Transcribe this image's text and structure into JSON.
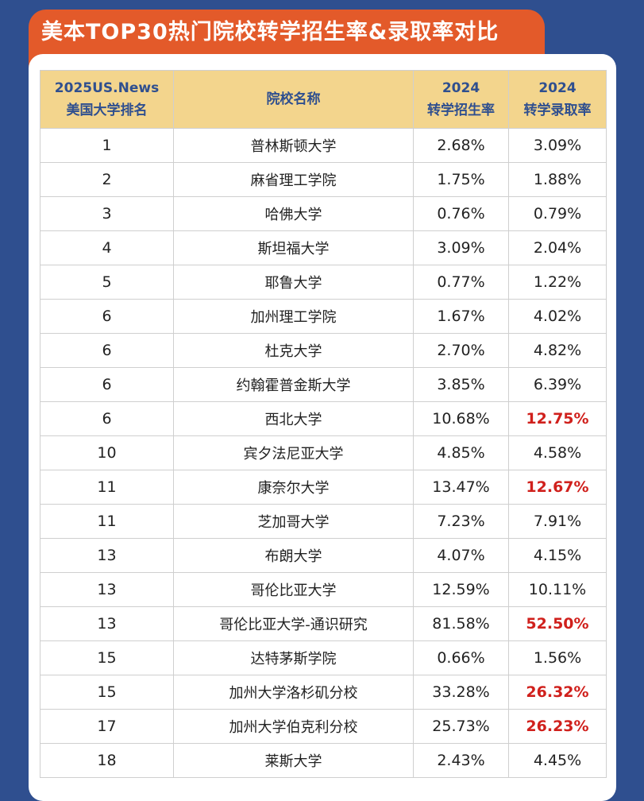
{
  "title": "美本TOP30热门院校转学招生率&录取率对比",
  "colors": {
    "background": "#2f4f8f",
    "title_bg": "#e35a2a",
    "header_bg": "#f3d58d",
    "highlight": "#d0201c"
  },
  "table": {
    "headers": {
      "rank_line1": "2025US.News",
      "rank_line2": "美国大学排名",
      "name": "院校名称",
      "enroll_line1": "2024",
      "enroll_line2": "转学招生率",
      "admit_line1": "2024",
      "admit_line2": "转学录取率"
    },
    "rows": [
      {
        "rank": "1",
        "name": "普林斯顿大学",
        "enroll": "2.68%",
        "admit": "3.09%",
        "highlight": false
      },
      {
        "rank": "2",
        "name": "麻省理工学院",
        "enroll": "1.75%",
        "admit": "1.88%",
        "highlight": false
      },
      {
        "rank": "3",
        "name": "哈佛大学",
        "enroll": "0.76%",
        "admit": "0.79%",
        "highlight": false
      },
      {
        "rank": "4",
        "name": "斯坦福大学",
        "enroll": "3.09%",
        "admit": "2.04%",
        "highlight": false
      },
      {
        "rank": "5",
        "name": "耶鲁大学",
        "enroll": "0.77%",
        "admit": "1.22%",
        "highlight": false
      },
      {
        "rank": "6",
        "name": "加州理工学院",
        "enroll": "1.67%",
        "admit": "4.02%",
        "highlight": false
      },
      {
        "rank": "6",
        "name": "杜克大学",
        "enroll": "2.70%",
        "admit": "4.82%",
        "highlight": false
      },
      {
        "rank": "6",
        "name": "约翰霍普金斯大学",
        "enroll": "3.85%",
        "admit": "6.39%",
        "highlight": false
      },
      {
        "rank": "6",
        "name": "西北大学",
        "enroll": "10.68%",
        "admit": "12.75%",
        "highlight": true
      },
      {
        "rank": "10",
        "name": "宾夕法尼亚大学",
        "enroll": "4.85%",
        "admit": "4.58%",
        "highlight": false
      },
      {
        "rank": "11",
        "name": "康奈尔大学",
        "enroll": "13.47%",
        "admit": "12.67%",
        "highlight": true
      },
      {
        "rank": "11",
        "name": "芝加哥大学",
        "enroll": "7.23%",
        "admit": "7.91%",
        "highlight": false
      },
      {
        "rank": "13",
        "name": "布朗大学",
        "enroll": "4.07%",
        "admit": "4.15%",
        "highlight": false
      },
      {
        "rank": "13",
        "name": "哥伦比亚大学",
        "enroll": "12.59%",
        "admit": "10.11%",
        "highlight": false
      },
      {
        "rank": "13",
        "name": "哥伦比亚大学-通识研究",
        "enroll": "81.58%",
        "admit": "52.50%",
        "highlight": true
      },
      {
        "rank": "15",
        "name": "达特茅斯学院",
        "enroll": "0.66%",
        "admit": "1.56%",
        "highlight": false
      },
      {
        "rank": "15",
        "name": "加州大学洛杉矶分校",
        "enroll": "33.28%",
        "admit": "26.32%",
        "highlight": true
      },
      {
        "rank": "17",
        "name": "加州大学伯克利分校",
        "enroll": "25.73%",
        "admit": "26.23%",
        "highlight": true
      },
      {
        "rank": "18",
        "name": "莱斯大学",
        "enroll": "2.43%",
        "admit": "4.45%",
        "highlight": false
      }
    ]
  }
}
